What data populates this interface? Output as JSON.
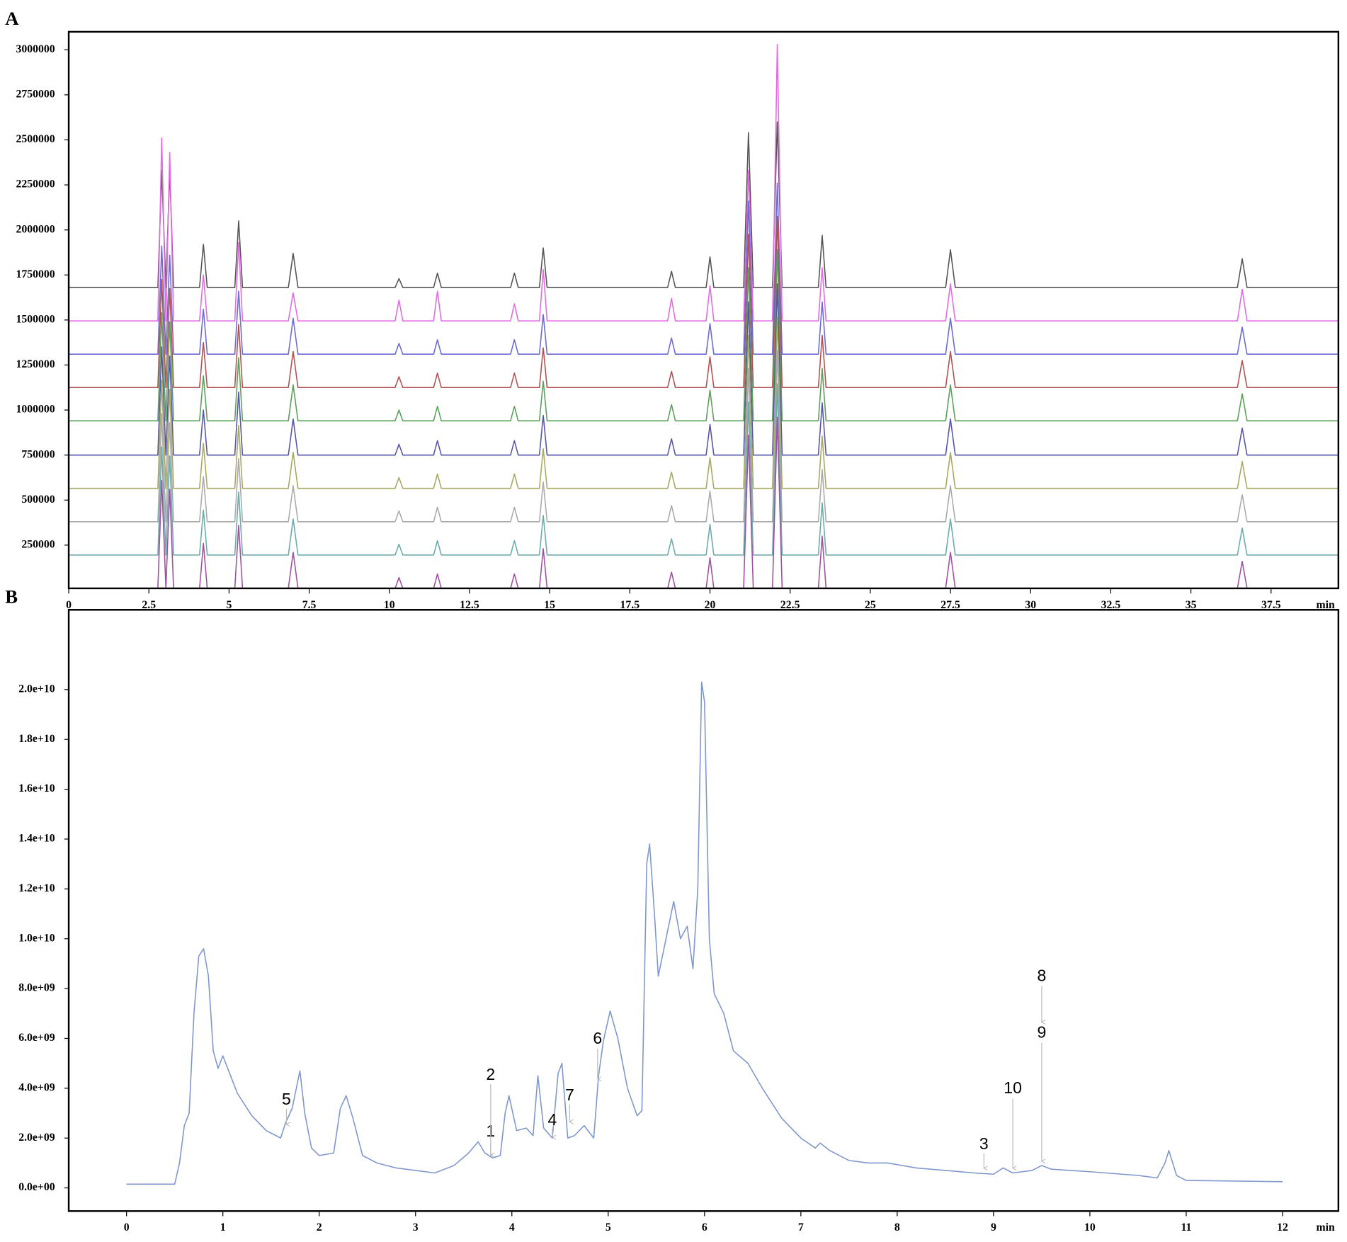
{
  "chart_data": [
    {
      "type": "line",
      "panel_label": "A",
      "x_label": "min",
      "xlim": [
        0,
        39.6
      ],
      "ylim": [
        10000,
        3100000
      ],
      "xticks": [
        0,
        2.5,
        5,
        7.5,
        10,
        12.5,
        15,
        17.5,
        20,
        22.5,
        25,
        27.5,
        30,
        32.5,
        35,
        37.5
      ],
      "yticks": [
        250000,
        500000,
        750000,
        1000000,
        1250000,
        1500000,
        1750000,
        2000000,
        2250000,
        2500000,
        2750000,
        3000000
      ],
      "x": [
        0,
        2.5,
        2.78,
        2.9,
        3.03,
        3.15,
        3.27,
        4.08,
        4.2,
        4.32,
        5.18,
        5.3,
        5.42,
        6.85,
        7.0,
        7.15,
        10.18,
        10.3,
        10.42,
        11.38,
        11.5,
        11.62,
        13.78,
        13.9,
        14.02,
        14.68,
        14.8,
        14.92,
        18.68,
        18.8,
        18.92,
        19.88,
        20.0,
        20.12,
        21.05,
        21.2,
        21.35,
        21.95,
        22.1,
        22.25,
        23.38,
        23.5,
        23.62,
        27.35,
        27.5,
        27.65,
        36.45,
        36.6,
        36.75,
        39.6
      ],
      "series": [
        {
          "color": "#555555",
          "values": [
            1680000,
            1680000,
            1680000,
            2330000,
            1680000,
            2330000,
            1680000,
            1680000,
            1920000,
            1680000,
            1680000,
            2050000,
            1680000,
            1680000,
            1870000,
            1680000,
            1680000,
            1730000,
            1680000,
            1680000,
            1760000,
            1680000,
            1680000,
            1760000,
            1680000,
            1680000,
            1900000,
            1680000,
            1680000,
            1770000,
            1680000,
            1680000,
            1850000,
            1680000,
            1680000,
            2540000,
            1680000,
            1680000,
            2600000,
            1680000,
            1680000,
            1970000,
            1680000,
            1680000,
            1890000,
            1680000,
            1680000,
            1840000,
            1680000,
            1680000
          ]
        },
        {
          "color": "#e46ae4",
          "values": [
            1495000,
            1495000,
            1495000,
            2510000,
            1495000,
            2430000,
            1495000,
            1495000,
            1750000,
            1495000,
            1495000,
            1930000,
            1495000,
            1495000,
            1650000,
            1495000,
            1495000,
            1610000,
            1495000,
            1495000,
            1660000,
            1495000,
            1495000,
            1590000,
            1495000,
            1495000,
            1780000,
            1495000,
            1495000,
            1620000,
            1495000,
            1495000,
            1690000,
            1495000,
            1495000,
            2330000,
            1495000,
            1495000,
            3030000,
            1495000,
            1495000,
            1790000,
            1495000,
            1495000,
            1700000,
            1495000,
            1495000,
            1670000,
            1495000,
            1495000
          ]
        },
        {
          "color": "#6b6bd6",
          "values": [
            1310000,
            1310000,
            1310000,
            1910000,
            1310000,
            1860000,
            1310000,
            1310000,
            1560000,
            1310000,
            1310000,
            1660000,
            1310000,
            1310000,
            1510000,
            1310000,
            1310000,
            1370000,
            1310000,
            1310000,
            1390000,
            1310000,
            1310000,
            1390000,
            1310000,
            1310000,
            1530000,
            1310000,
            1310000,
            1400000,
            1310000,
            1310000,
            1480000,
            1310000,
            1310000,
            2160000,
            1310000,
            1310000,
            2260000,
            1310000,
            1310000,
            1600000,
            1310000,
            1310000,
            1510000,
            1310000,
            1310000,
            1460000,
            1310000,
            1310000
          ]
        },
        {
          "color": "#b55050",
          "values": [
            1125000,
            1125000,
            1125000,
            1725000,
            1125000,
            1675000,
            1125000,
            1125000,
            1375000,
            1125000,
            1125000,
            1475000,
            1125000,
            1125000,
            1325000,
            1125000,
            1125000,
            1185000,
            1125000,
            1125000,
            1205000,
            1125000,
            1125000,
            1205000,
            1125000,
            1125000,
            1345000,
            1125000,
            1125000,
            1215000,
            1125000,
            1125000,
            1295000,
            1125000,
            1125000,
            1975000,
            1125000,
            1125000,
            2075000,
            1125000,
            1125000,
            1415000,
            1125000,
            1125000,
            1325000,
            1125000,
            1125000,
            1275000,
            1125000,
            1125000
          ]
        },
        {
          "color": "#5aa05a",
          "values": [
            940000,
            940000,
            940000,
            1540000,
            940000,
            1490000,
            940000,
            940000,
            1190000,
            940000,
            940000,
            1290000,
            940000,
            940000,
            1140000,
            940000,
            940000,
            1000000,
            940000,
            940000,
            1020000,
            940000,
            940000,
            1020000,
            940000,
            940000,
            1160000,
            940000,
            940000,
            1030000,
            940000,
            940000,
            1110000,
            940000,
            940000,
            1790000,
            940000,
            940000,
            1890000,
            940000,
            940000,
            1230000,
            940000,
            940000,
            1140000,
            940000,
            940000,
            1090000,
            940000,
            940000
          ]
        },
        {
          "color": "#5555aa",
          "values": [
            750000,
            750000,
            750000,
            1350000,
            750000,
            1300000,
            750000,
            750000,
            1000000,
            750000,
            750000,
            1100000,
            750000,
            750000,
            950000,
            750000,
            750000,
            810000,
            750000,
            750000,
            830000,
            750000,
            750000,
            830000,
            750000,
            750000,
            970000,
            750000,
            750000,
            840000,
            750000,
            750000,
            920000,
            750000,
            750000,
            1600000,
            750000,
            750000,
            1700000,
            750000,
            750000,
            1040000,
            750000,
            750000,
            950000,
            750000,
            750000,
            900000,
            750000,
            750000
          ]
        },
        {
          "color": "#a8a860",
          "values": [
            565000,
            565000,
            565000,
            1165000,
            565000,
            1115000,
            565000,
            565000,
            815000,
            565000,
            565000,
            915000,
            565000,
            565000,
            765000,
            565000,
            565000,
            625000,
            565000,
            565000,
            645000,
            565000,
            565000,
            645000,
            565000,
            565000,
            785000,
            565000,
            565000,
            655000,
            565000,
            565000,
            735000,
            565000,
            565000,
            1415000,
            565000,
            565000,
            1515000,
            565000,
            565000,
            855000,
            565000,
            565000,
            765000,
            565000,
            565000,
            715000,
            565000,
            565000
          ]
        },
        {
          "color": "#aaaaaa",
          "values": [
            380000,
            380000,
            380000,
            980000,
            380000,
            930000,
            380000,
            380000,
            630000,
            380000,
            380000,
            730000,
            380000,
            380000,
            580000,
            380000,
            380000,
            440000,
            380000,
            380000,
            460000,
            380000,
            380000,
            460000,
            380000,
            380000,
            600000,
            380000,
            380000,
            470000,
            380000,
            380000,
            550000,
            380000,
            380000,
            1230000,
            380000,
            380000,
            1330000,
            380000,
            380000,
            670000,
            380000,
            380000,
            580000,
            380000,
            380000,
            530000,
            380000,
            380000
          ]
        },
        {
          "color": "#6aabab",
          "values": [
            195000,
            195000,
            195000,
            795000,
            195000,
            745000,
            195000,
            195000,
            445000,
            195000,
            195000,
            545000,
            195000,
            195000,
            395000,
            195000,
            195000,
            255000,
            195000,
            195000,
            275000,
            195000,
            195000,
            275000,
            195000,
            195000,
            415000,
            195000,
            195000,
            285000,
            195000,
            195000,
            365000,
            195000,
            195000,
            1045000,
            195000,
            195000,
            1145000,
            195000,
            195000,
            485000,
            195000,
            195000,
            395000,
            195000,
            195000,
            345000,
            195000,
            195000
          ]
        },
        {
          "color": "#a050a0",
          "values": [
            10000,
            10000,
            10000,
            610000,
            10000,
            560000,
            10000,
            10000,
            260000,
            10000,
            10000,
            360000,
            10000,
            10000,
            210000,
            10000,
            10000,
            70000,
            10000,
            10000,
            90000,
            10000,
            10000,
            90000,
            10000,
            10000,
            230000,
            10000,
            10000,
            100000,
            10000,
            10000,
            180000,
            10000,
            10000,
            860000,
            10000,
            10000,
            960000,
            10000,
            10000,
            300000,
            10000,
            10000,
            210000,
            10000,
            10000,
            160000,
            10000,
            10000
          ]
        }
      ]
    },
    {
      "type": "line",
      "panel_label": "B",
      "x_label": "min",
      "xlim": [
        -0.6,
        12.58
      ],
      "ylim": [
        -930000000.0,
        23200000000.0
      ],
      "xticks": [
        0,
        1,
        2,
        3,
        4,
        5,
        6,
        7,
        8,
        9,
        10,
        11,
        12
      ],
      "yticks": [
        {
          "value": 0,
          "label": "0.0e+00"
        },
        {
          "value": 2000000000.0,
          "label": "2.0e+09"
        },
        {
          "value": 4000000000.0,
          "label": "4.0e+09"
        },
        {
          "value": 6000000000.0,
          "label": "6.0e+09"
        },
        {
          "value": 8000000000.0,
          "label": "8.0e+09"
        },
        {
          "value": 10000000000.0,
          "label": "1.0e+10"
        },
        {
          "value": 12000000000.0,
          "label": "1.2e+10"
        },
        {
          "value": 14000000000.0,
          "label": "1.4e+10"
        },
        {
          "value": 16000000000.0,
          "label": "1.6e+10"
        },
        {
          "value": 18000000000.0,
          "label": "1.8e+10"
        },
        {
          "value": 20000000000.0,
          "label": "2.0e+10"
        }
      ],
      "x": [
        0,
        0.5,
        0.55,
        0.6,
        0.65,
        0.7,
        0.75,
        0.8,
        0.85,
        0.9,
        0.95,
        1.0,
        1.05,
        1.15,
        1.3,
        1.45,
        1.6,
        1.65,
        1.72,
        1.8,
        1.85,
        1.92,
        2.0,
        2.15,
        2.22,
        2.28,
        2.35,
        2.45,
        2.6,
        2.8,
        3.0,
        3.2,
        3.4,
        3.55,
        3.65,
        3.72,
        3.8,
        3.88,
        3.93,
        3.97,
        4.05,
        4.15,
        4.22,
        4.27,
        4.33,
        4.42,
        4.48,
        4.52,
        4.58,
        4.65,
        4.75,
        4.85,
        4.9,
        4.95,
        5.02,
        5.1,
        5.2,
        5.3,
        5.35,
        5.4,
        5.43,
        5.48,
        5.52,
        5.6,
        5.68,
        5.75,
        5.82,
        5.88,
        5.93,
        5.97,
        6.0,
        6.05,
        6.1,
        6.2,
        6.3,
        6.45,
        6.6,
        6.8,
        7.0,
        7.15,
        7.2,
        7.3,
        7.5,
        7.7,
        7.9,
        8.2,
        8.5,
        8.8,
        9.0,
        9.1,
        9.2,
        9.4,
        9.5,
        9.6,
        10.0,
        10.5,
        10.7,
        10.78,
        10.82,
        10.9,
        11.0,
        12.0
      ],
      "series": [
        {
          "color": "#7f97cc",
          "values": [
            150000000.0,
            150000000.0,
            1000000000.0,
            2500000000.0,
            3000000000.0,
            7000000000.0,
            9300000000.0,
            9600000000.0,
            8500000000.0,
            5500000000.0,
            4800000000.0,
            5300000000.0,
            4800000000.0,
            3800000000.0,
            2900000000.0,
            2300000000.0,
            2000000000.0,
            2600000000.0,
            3200000000.0,
            4700000000.0,
            3000000000.0,
            1600000000.0,
            1300000000.0,
            1400000000.0,
            3200000000.0,
            3700000000.0,
            2800000000.0,
            1300000000.0,
            1000000000.0,
            800000000.0,
            700000000.0,
            600000000.0,
            900000000.0,
            1400000000.0,
            1850000000.0,
            1400000000.0,
            1200000000.0,
            1300000000.0,
            3000000000.0,
            3700000000.0,
            2300000000.0,
            2400000000.0,
            2100000000.0,
            4500000000.0,
            2400000000.0,
            2000000000.0,
            4600000000.0,
            5000000000.0,
            2000000000.0,
            2100000000.0,
            2500000000.0,
            2000000000.0,
            4500000000.0,
            5900000000.0,
            7100000000.0,
            6000000000.0,
            4000000000.0,
            2900000000.0,
            3100000000.0,
            13000000000.0,
            13800000000.0,
            11000000000.0,
            8500000000.0,
            10000000000.0,
            11500000000.0,
            10000000000.0,
            10500000000.0,
            8800000000.0,
            12000000000.0,
            20300000000.0,
            19500000000.0,
            10000000000.0,
            7800000000.0,
            7000000000.0,
            5500000000.0,
            5000000000.0,
            4000000000.0,
            2800000000.0,
            2000000000.0,
            1600000000.0,
            1800000000.0,
            1500000000.0,
            1100000000.0,
            1000000000.0,
            1000000000.0,
            800000000.0,
            700000000.0,
            600000000.0,
            550000000.0,
            800000000.0,
            600000000.0,
            700000000.0,
            900000000.0,
            750000000.0,
            650000000.0,
            500000000.0,
            400000000.0,
            1000000000.0,
            1500000000.0,
            500000000.0,
            300000000.0,
            250000000.0
          ]
        }
      ],
      "annotations": [
        {
          "text": "1",
          "x": 3.78
        },
        {
          "text": "2",
          "x": 3.78
        },
        {
          "text": "3",
          "x": 8.9
        },
        {
          "text": "4",
          "x": 4.42
        },
        {
          "text": "5",
          "x": 1.66
        },
        {
          "text": "6",
          "x": 4.89
        },
        {
          "text": "7",
          "x": 4.6
        },
        {
          "text": "8",
          "x": 9.5
        },
        {
          "text": "9",
          "x": 9.5
        },
        {
          "text": "10",
          "x": 9.2
        }
      ]
    }
  ]
}
